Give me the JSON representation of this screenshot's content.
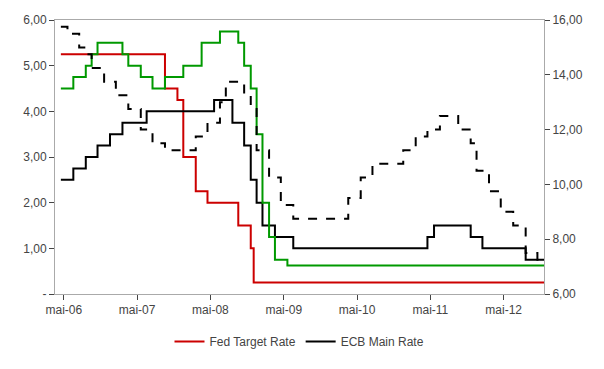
{
  "chart_data": {
    "type": "step",
    "xlim": [
      2006.25,
      2012.92
    ],
    "xticks": [
      {
        "value": 2006.37,
        "label": "mai-06"
      },
      {
        "value": 2007.37,
        "label": "mai-07"
      },
      {
        "value": 2008.37,
        "label": "mai-08"
      },
      {
        "value": 2009.37,
        "label": "mai-09"
      },
      {
        "value": 2010.37,
        "label": "mai-10"
      },
      {
        "value": 2011.37,
        "label": "mai-11"
      },
      {
        "value": 2012.37,
        "label": "mai-12"
      }
    ],
    "ylim": [
      0,
      6.0
    ],
    "yticks": [
      {
        "value": 0,
        "label": "-"
      },
      {
        "value": 1.0,
        "label": "1,00"
      },
      {
        "value": 2.0,
        "label": "2,00"
      },
      {
        "value": 3.0,
        "label": "3,00"
      },
      {
        "value": 4.0,
        "label": "4,00"
      },
      {
        "value": 5.0,
        "label": "5,00"
      },
      {
        "value": 6.0,
        "label": "6,00"
      }
    ],
    "y2lim": [
      6.0,
      16.0
    ],
    "y2ticks": [
      {
        "value": 6.0,
        "label": "6,00"
      },
      {
        "value": 8.0,
        "label": "8,00"
      },
      {
        "value": 10.0,
        "label": "10,00"
      },
      {
        "value": 12.0,
        "label": "12,00"
      },
      {
        "value": 14.0,
        "label": "14,00"
      },
      {
        "value": 16.0,
        "label": "16,00"
      }
    ],
    "grid": false,
    "legend": "bottom",
    "series": [
      {
        "name": "Fed Target Rate",
        "color": "#cc0000",
        "line_style": "solid",
        "x": [
          2006.33,
          2006.42,
          2006.58,
          2007.42,
          2007.75,
          2007.92,
          2008.0,
          2008.17,
          2008.33,
          2008.75,
          2008.92,
          2008.96,
          2012.92
        ],
        "values": [
          5.25,
          5.25,
          5.25,
          5.25,
          4.5,
          4.25,
          3.0,
          2.25,
          2.0,
          1.5,
          1.0,
          0.25,
          0.25
        ]
      },
      {
        "name": "ECB Main Rate",
        "color": "#000000",
        "line_style": "solid",
        "x": [
          2006.33,
          2006.5,
          2006.67,
          2006.83,
          2007.0,
          2007.17,
          2007.5,
          2008.42,
          2008.67,
          2008.83,
          2008.92,
          2009.0,
          2009.08,
          2009.25,
          2009.5,
          2011.33,
          2011.42,
          2011.67,
          2011.92,
          2012.08,
          2012.67,
          2012.92
        ],
        "values": [
          2.5,
          2.75,
          3.0,
          3.25,
          3.5,
          3.75,
          4.0,
          4.25,
          3.75,
          3.25,
          2.5,
          2.0,
          1.5,
          1.25,
          1.0,
          1.25,
          1.5,
          1.5,
          1.25,
          1.0,
          0.75,
          0.75
        ]
      },
      {
        "color": "#009900",
        "line_style": "solid",
        "x": [
          2006.33,
          2006.5,
          2006.67,
          2006.75,
          2006.83,
          2007.0,
          2007.17,
          2007.25,
          2007.42,
          2007.58,
          2007.67,
          2007.75,
          2008.0,
          2008.25,
          2008.5,
          2008.67,
          2008.75,
          2008.83,
          2008.92,
          2009.0,
          2009.08,
          2009.17,
          2009.25,
          2009.42,
          2009.58,
          2009.75,
          2012.92
        ],
        "values": [
          4.5,
          4.75,
          5.0,
          5.25,
          5.5,
          5.5,
          5.25,
          5.0,
          4.75,
          4.5,
          4.5,
          4.75,
          5.0,
          5.5,
          5.75,
          5.75,
          5.5,
          5.0,
          4.5,
          3.5,
          2.0,
          1.25,
          0.75,
          0.625,
          0.625,
          0.625,
          0.625
        ]
      },
      {
        "color": "#000000",
        "line_style": "dashed",
        "axis": "y2",
        "x": [
          2006.33,
          2006.42,
          2006.58,
          2006.67,
          2006.75,
          2006.92,
          2007.08,
          2007.25,
          2007.42,
          2007.58,
          2007.75,
          2007.92,
          2008.0,
          2008.17,
          2008.33,
          2008.5,
          2008.58,
          2008.67,
          2008.75,
          2008.83,
          2008.92,
          2009.0,
          2009.17,
          2009.33,
          2009.5,
          2009.67,
          2009.75,
          2010.0,
          2010.25,
          2010.42,
          2010.58,
          2010.67,
          2010.75,
          2010.92,
          2011.0,
          2011.17,
          2011.33,
          2011.5,
          2011.67,
          2011.75,
          2011.92,
          2012.0,
          2012.17,
          2012.33,
          2012.5,
          2012.67,
          2012.83,
          2012.92
        ],
        "values": [
          15.75,
          15.5,
          15.0,
          14.75,
          14.25,
          13.75,
          13.25,
          12.75,
          12.0,
          11.5,
          11.25,
          11.25,
          11.25,
          11.75,
          12.25,
          13.0,
          13.75,
          13.75,
          13.75,
          13.25,
          12.75,
          11.25,
          10.25,
          9.25,
          8.75,
          8.75,
          8.75,
          8.75,
          9.5,
          10.25,
          10.75,
          10.75,
          10.75,
          10.75,
          11.25,
          11.75,
          12.0,
          12.5,
          12.5,
          12.0,
          11.5,
          10.5,
          9.75,
          9.0,
          8.5,
          7.5,
          7.25,
          7.25
        ]
      }
    ]
  }
}
